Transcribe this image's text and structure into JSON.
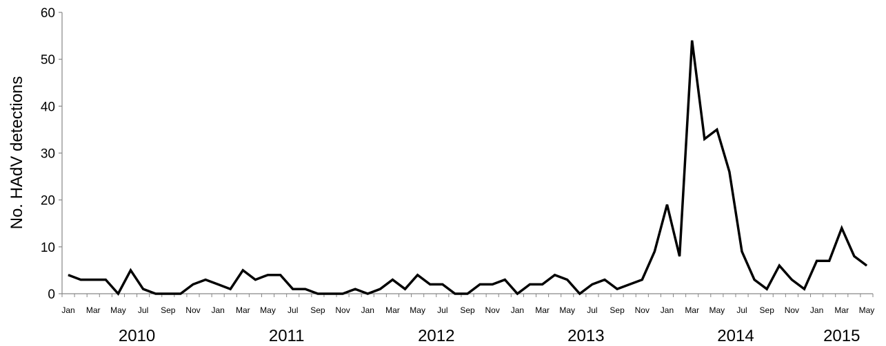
{
  "chart_data": {
    "type": "line",
    "ylabel": "No. HAdV detections",
    "xlabel": "",
    "ylim": [
      0,
      60
    ],
    "yticks": [
      0,
      10,
      20,
      30,
      40,
      50,
      60
    ],
    "grid": false,
    "line_color": "#000000",
    "x": [
      "2010-01",
      "2010-02",
      "2010-03",
      "2010-04",
      "2010-05",
      "2010-06",
      "2010-07",
      "2010-08",
      "2010-09",
      "2010-10",
      "2010-11",
      "2010-12",
      "2011-01",
      "2011-02",
      "2011-03",
      "2011-04",
      "2011-05",
      "2011-06",
      "2011-07",
      "2011-08",
      "2011-09",
      "2011-10",
      "2011-11",
      "2011-12",
      "2012-01",
      "2012-02",
      "2012-03",
      "2012-04",
      "2012-05",
      "2012-06",
      "2012-07",
      "2012-08",
      "2012-09",
      "2012-10",
      "2012-11",
      "2012-12",
      "2013-01",
      "2013-02",
      "2013-03",
      "2013-04",
      "2013-05",
      "2013-06",
      "2013-07",
      "2013-08",
      "2013-09",
      "2013-10",
      "2013-11",
      "2013-12",
      "2014-01",
      "2014-02",
      "2014-03",
      "2014-04",
      "2014-05",
      "2014-06",
      "2014-07",
      "2014-08",
      "2014-09",
      "2014-10",
      "2014-11",
      "2014-12",
      "2015-01",
      "2015-02",
      "2015-03",
      "2015-04",
      "2015-05"
    ],
    "values": [
      4,
      3,
      3,
      3,
      0,
      5,
      1,
      0,
      0,
      0,
      2,
      3,
      2,
      1,
      5,
      3,
      4,
      4,
      1,
      1,
      0,
      0,
      0,
      1,
      0,
      1,
      3,
      1,
      4,
      2,
      2,
      0,
      0,
      2,
      2,
      3,
      0,
      2,
      2,
      4,
      3,
      0,
      2,
      3,
      1,
      2,
      3,
      9,
      19,
      8,
      54,
      33,
      35,
      26,
      9,
      3,
      1,
      6,
      3,
      1,
      7,
      7,
      14,
      8,
      6
    ],
    "x_tick_labels": [
      "Jan",
      "Mar",
      "May",
      "Jul",
      "Sep",
      "Nov",
      "Jan",
      "Mar",
      "May",
      "Jul",
      "Sep",
      "Nov",
      "Jan",
      "Mar",
      "May",
      "Jul",
      "Sep",
      "Nov",
      "Jan",
      "Mar",
      "May",
      "Jul",
      "Sep",
      "Nov",
      "Jan",
      "Mar",
      "May",
      "Jul",
      "Sep",
      "Nov",
      "Jan",
      "Mar",
      "May"
    ],
    "years": [
      "2010",
      "2011",
      "2012",
      "2013",
      "2014",
      "2015"
    ]
  }
}
